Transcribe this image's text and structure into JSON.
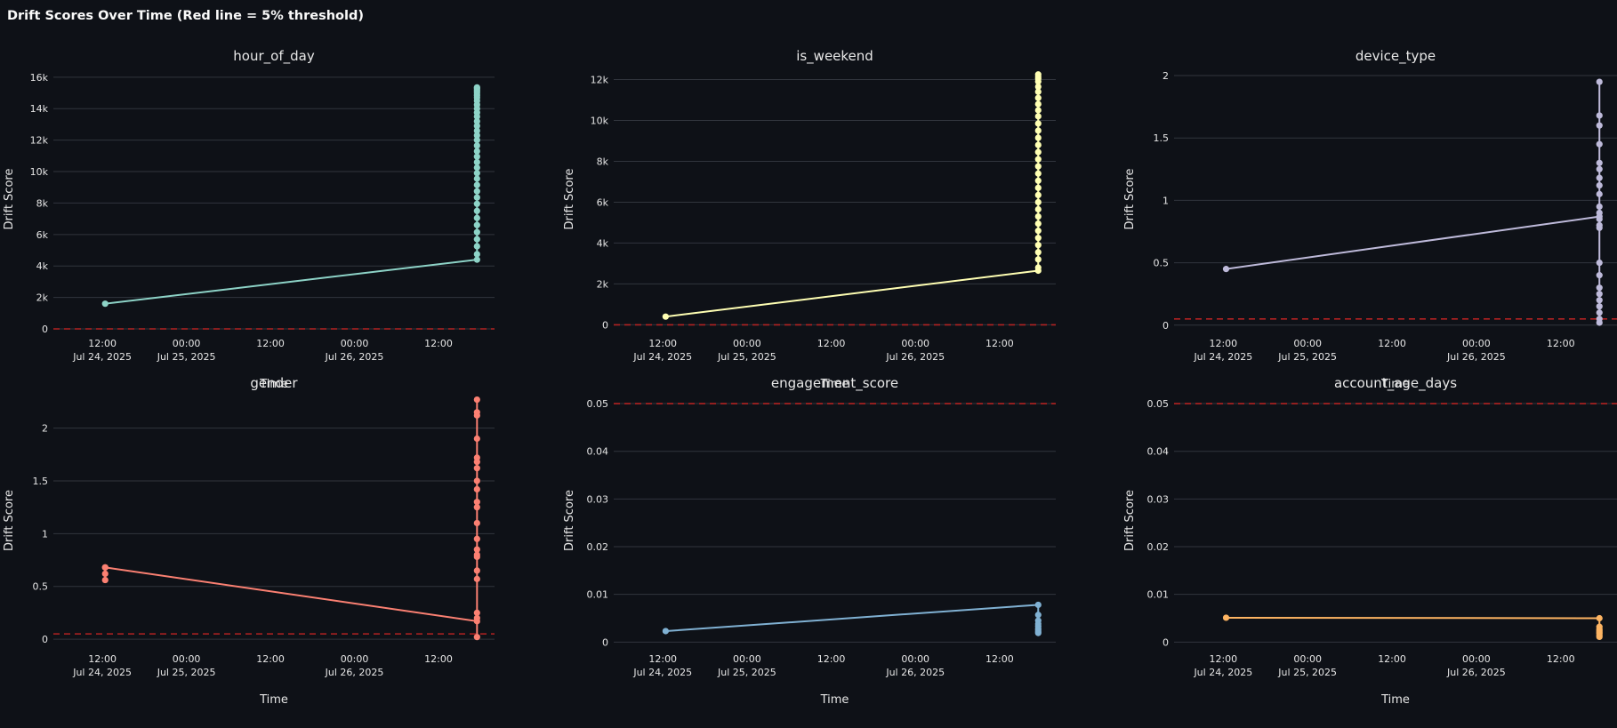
{
  "page": {
    "title": "Drift Scores Over Time (Red line = 5% threshold)"
  },
  "chart_data": [
    {
      "type": "line",
      "title": "hour_of_day",
      "xlabel": "Time",
      "ylabel": "Drift Score",
      "color": "#8dd3c7",
      "threshold": 0.05,
      "threshold_color": "#b22222",
      "ylim": [
        0,
        16500
      ],
      "yticks": [
        0,
        2000,
        4000,
        6000,
        8000,
        10000,
        12000,
        14000,
        16000
      ],
      "ytick_labels": [
        "0",
        "2k",
        "4k",
        "6k",
        "8k",
        "10k",
        "12k",
        "14k",
        "16k"
      ],
      "x_tick_labels": [
        "12:00",
        "00:00",
        "12:00",
        "00:00",
        "12:00"
      ],
      "x_date_labels": [
        "Jul 24, 2025",
        "Jul 25, 2025",
        "",
        "Jul 26, 2025",
        ""
      ],
      "series": [
        {
          "x": [
            "2025-07-24 12:24",
            "2025-07-26 17:30",
            "2025-07-26 17:30",
            "2025-07-26 17:30",
            "2025-07-26 17:30",
            "2025-07-26 17:30",
            "2025-07-26 17:30",
            "2025-07-26 17:30",
            "2025-07-26 17:30",
            "2025-07-26 17:30",
            "2025-07-26 17:30",
            "2025-07-26 17:30",
            "2025-07-26 17:30",
            "2025-07-26 17:30",
            "2025-07-26 17:30",
            "2025-07-26 17:30",
            "2025-07-26 17:30",
            "2025-07-26 17:30",
            "2025-07-26 17:30",
            "2025-07-26 17:30",
            "2025-07-26 17:30",
            "2025-07-26 17:30",
            "2025-07-26 17:30",
            "2025-07-26 17:30",
            "2025-07-26 17:30",
            "2025-07-26 17:30",
            "2025-07-26 17:30",
            "2025-07-26 17:30",
            "2025-07-26 17:30",
            "2025-07-26 17:30",
            "2025-07-26 17:30",
            "2025-07-26 17:30",
            "2025-07-26 17:30",
            "2025-07-26 17:30",
            "2025-07-26 17:30",
            "2025-07-26 17:30",
            "2025-07-26 17:30"
          ],
          "y": [
            1600,
            4400,
            4750,
            5250,
            5700,
            6150,
            6600,
            7050,
            7500,
            7950,
            8350,
            8750,
            9150,
            9550,
            9900,
            10250,
            10600,
            10950,
            11300,
            11650,
            12000,
            12300,
            12600,
            12900,
            13200,
            13500,
            13750,
            14000,
            14250,
            14500,
            14700,
            14850,
            15000,
            15100,
            15200,
            15300,
            15350
          ]
        }
      ]
    },
    {
      "type": "line",
      "title": "is_weekend",
      "xlabel": "Time",
      "ylabel": "Drift Score",
      "color": "#ffffb3",
      "threshold": 0.05,
      "threshold_color": "#b22222",
      "ylim": [
        -200,
        12500
      ],
      "yticks": [
        0,
        2000,
        4000,
        6000,
        8000,
        10000,
        12000
      ],
      "ytick_labels": [
        "0",
        "2k",
        "4k",
        "6k",
        "8k",
        "10k",
        "12k"
      ],
      "x_tick_labels": [
        "12:00",
        "00:00",
        "12:00",
        "00:00",
        "12:00"
      ],
      "x_date_labels": [
        "Jul 24, 2025",
        "Jul 25, 2025",
        "",
        "Jul 26, 2025",
        ""
      ],
      "series": [
        {
          "x": [
            "2025-07-24 12:24",
            "2025-07-26 17:30",
            "2025-07-26 17:30",
            "2025-07-26 17:30",
            "2025-07-26 17:30",
            "2025-07-26 17:30",
            "2025-07-26 17:30",
            "2025-07-26 17:30",
            "2025-07-26 17:30",
            "2025-07-26 17:30",
            "2025-07-26 17:30",
            "2025-07-26 17:30",
            "2025-07-26 17:30",
            "2025-07-26 17:30",
            "2025-07-26 17:30",
            "2025-07-26 17:30",
            "2025-07-26 17:30",
            "2025-07-26 17:30",
            "2025-07-26 17:30",
            "2025-07-26 17:30",
            "2025-07-26 17:30",
            "2025-07-26 17:30",
            "2025-07-26 17:30",
            "2025-07-26 17:30",
            "2025-07-26 17:30",
            "2025-07-26 17:30",
            "2025-07-26 17:30",
            "2025-07-26 17:30",
            "2025-07-26 17:30",
            "2025-07-26 17:30",
            "2025-07-26 17:30",
            "2025-07-26 17:30",
            "2025-07-26 17:30"
          ],
          "y": [
            400,
            2650,
            2800,
            3200,
            3550,
            3900,
            4250,
            4600,
            4950,
            5300,
            5650,
            6000,
            6350,
            6700,
            7050,
            7400,
            7750,
            8100,
            8450,
            8800,
            9150,
            9500,
            9850,
            10200,
            10500,
            10800,
            11100,
            11400,
            11650,
            11900,
            12050,
            12150,
            12250
          ]
        }
      ]
    },
    {
      "type": "line",
      "title": "device_type",
      "xlabel": "Time",
      "ylabel": "Drift Score",
      "color": "#bebada",
      "threshold": 0.05,
      "threshold_color": "#b22222",
      "ylim": [
        -0.03,
        2.05
      ],
      "yticks": [
        0,
        0.5,
        1,
        1.5,
        2
      ],
      "ytick_labels": [
        "0",
        "0.5",
        "1",
        "1.5",
        "2"
      ],
      "x_tick_labels": [
        "12:00",
        "00:00",
        "12:00",
        "00:00",
        "12:00"
      ],
      "x_date_labels": [
        "Jul 24, 2025",
        "Jul 25, 2025",
        "",
        "Jul 26, 2025",
        ""
      ],
      "series": [
        {
          "x": [
            "2025-07-24 12:24",
            "2025-07-26 17:30",
            "2025-07-26 17:30",
            "2025-07-26 17:30",
            "2025-07-26 17:30",
            "2025-07-26 17:30",
            "2025-07-26 17:30",
            "2025-07-26 17:30",
            "2025-07-26 17:30",
            "2025-07-26 17:30",
            "2025-07-26 17:30",
            "2025-07-26 17:30",
            "2025-07-26 17:30",
            "2025-07-26 17:30",
            "2025-07-26 17:30",
            "2025-07-26 17:30",
            "2025-07-26 17:30",
            "2025-07-26 17:30",
            "2025-07-26 17:30",
            "2025-07-26 17:30",
            "2025-07-26 17:30",
            "2025-07-26 17:30",
            "2025-07-26 17:30",
            "2025-07-26 17:30",
            "2025-07-26 17:30"
          ],
          "y": [
            0.45,
            0.87,
            1.95,
            0.3,
            1.68,
            0.1,
            1.6,
            0.02,
            1.45,
            0.8,
            1.3,
            0.2,
            1.25,
            0.9,
            1.18,
            0.5,
            1.12,
            0.15,
            1.05,
            0.85,
            0.95,
            0.4,
            0.78,
            0.25,
            0.05
          ]
        }
      ]
    },
    {
      "type": "line",
      "title": "gender",
      "xlabel": "Time",
      "ylabel": "Drift Score",
      "color": "#fb8072",
      "threshold": 0.05,
      "threshold_color": "#b22222",
      "ylim": [
        -0.05,
        2.3
      ],
      "yticks": [
        0,
        0.5,
        1,
        1.5,
        2
      ],
      "ytick_labels": [
        "0",
        "0.5",
        "1",
        "1.5",
        "2"
      ],
      "x_tick_labels": [
        "12:00",
        "00:00",
        "12:00",
        "00:00",
        "12:00"
      ],
      "x_date_labels": [
        "Jul 24, 2025",
        "Jul 25, 2025",
        "",
        "Jul 26, 2025",
        ""
      ],
      "series": [
        {
          "x": [
            "2025-07-24 12:24",
            "2025-07-24 12:24",
            "2025-07-24 12:24",
            "2025-07-24 12:24",
            "2025-07-26 17:30",
            "2025-07-26 17:30",
            "2025-07-26 17:30",
            "2025-07-26 17:30",
            "2025-07-26 17:30",
            "2025-07-26 17:30",
            "2025-07-26 17:30",
            "2025-07-26 17:30",
            "2025-07-26 17:30",
            "2025-07-26 17:30",
            "2025-07-26 17:30",
            "2025-07-26 17:30",
            "2025-07-26 17:30",
            "2025-07-26 17:30",
            "2025-07-26 17:30",
            "2025-07-26 17:30",
            "2025-07-26 17:30",
            "2025-07-26 17:30",
            "2025-07-26 17:30",
            "2025-07-26 17:30",
            "2025-07-26 17:30",
            "2025-07-26 17:30"
          ],
          "y": [
            0.56,
            0.62,
            0.68,
            0.68,
            0.17,
            2.27,
            0.02,
            2.15,
            0.25,
            2.12,
            0.57,
            1.9,
            0.8,
            1.72,
            0.95,
            1.62,
            0.65,
            1.5,
            0.85,
            1.3,
            1.1,
            1.25,
            0.78,
            1.42,
            0.2,
            1.68
          ]
        }
      ]
    },
    {
      "type": "line",
      "title": "engagement_score",
      "xlabel": "Time",
      "ylabel": "Drift Score",
      "color": "#80b1d3",
      "threshold": 0.05,
      "threshold_color": "#b22222",
      "ylim": [
        -0.0005,
        0.0515
      ],
      "yticks": [
        0,
        0.01,
        0.02,
        0.03,
        0.04,
        0.05
      ],
      "ytick_labels": [
        "0",
        "0.01",
        "0.02",
        "0.03",
        "0.04",
        "0.05"
      ],
      "x_tick_labels": [
        "12:00",
        "00:00",
        "12:00",
        "00:00",
        "12:00"
      ],
      "x_date_labels": [
        "Jul 24, 2025",
        "Jul 25, 2025",
        "",
        "Jul 26, 2025",
        ""
      ],
      "series": [
        {
          "x": [
            "2025-07-24 12:24",
            "2025-07-26 17:30",
            "2025-07-26 17:30",
            "2025-07-26 17:30",
            "2025-07-26 17:30",
            "2025-07-26 17:30",
            "2025-07-26 17:30",
            "2025-07-26 17:30",
            "2025-07-26 17:30",
            "2025-07-26 17:30"
          ],
          "y": [
            0.0023,
            0.0078,
            0.0057,
            0.0045,
            0.0038,
            0.0033,
            0.0028,
            0.0025,
            0.0022,
            0.0019
          ]
        }
      ]
    },
    {
      "type": "line",
      "title": "account_age_days",
      "xlabel": "Time",
      "ylabel": "Drift Score",
      "color": "#fdb462",
      "threshold": 0.05,
      "threshold_color": "#b22222",
      "ylim": [
        -0.0005,
        0.0515
      ],
      "yticks": [
        0,
        0.01,
        0.02,
        0.03,
        0.04,
        0.05
      ],
      "ytick_labels": [
        "0",
        "0.01",
        "0.02",
        "0.03",
        "0.04",
        "0.05"
      ],
      "x_tick_labels": [
        "12:00",
        "00:00",
        "12:00",
        "00:00",
        "12:00"
      ],
      "x_date_labels": [
        "Jul 24, 2025",
        "Jul 25, 2025",
        "",
        "Jul 26, 2025",
        ""
      ],
      "series": [
        {
          "x": [
            "2025-07-24 12:24",
            "2025-07-26 17:30",
            "2025-07-26 17:30",
            "2025-07-26 17:30",
            "2025-07-26 17:30",
            "2025-07-26 17:30",
            "2025-07-26 17:30",
            "2025-07-26 17:30",
            "2025-07-26 17:30"
          ],
          "y": [
            0.0051,
            0.005,
            0.0032,
            0.0027,
            0.0024,
            0.0021,
            0.0018,
            0.0014,
            0.0011
          ]
        }
      ]
    }
  ]
}
